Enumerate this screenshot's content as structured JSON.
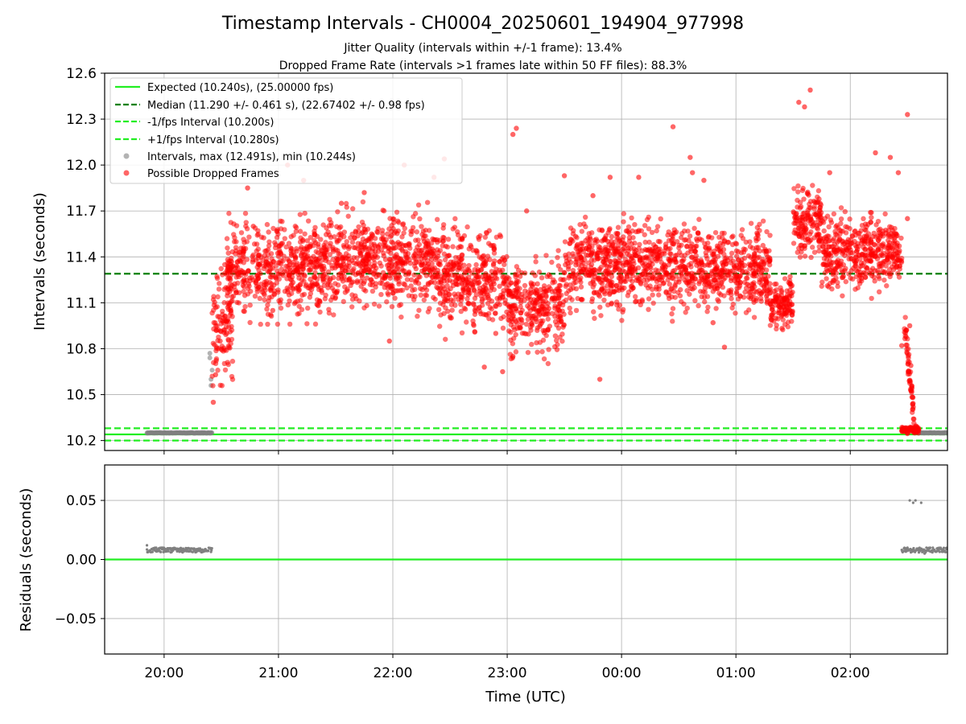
{
  "chart_data": {
    "type": "scatter",
    "title": "Timestamp Intervals - CH0004_20250601_194904_977998",
    "subtitle_lines": [
      "Jitter Quality (intervals within +/-1 frame): 13.4%",
      "Dropped Frame Rate (intervals >1 frames late within 50 FF files): 88.3%"
    ],
    "xlabel": "Time (UTC)",
    "x_tick_labels": [
      "20:00",
      "21:00",
      "22:00",
      "23:00",
      "00:00",
      "01:00",
      "02:00"
    ],
    "x_tick_hours": [
      20,
      21,
      22,
      23,
      24,
      25,
      26
    ],
    "xlim_hours": [
      19.48,
      26.85
    ],
    "grid": true,
    "top_panel": {
      "ylabel": "Intervals (seconds)",
      "ylim": [
        10.135,
        12.6
      ],
      "y_ticks": [
        10.2,
        10.5,
        10.8,
        11.1,
        11.4,
        11.7,
        12.0,
        12.3,
        12.6
      ],
      "y_tick_labels": [
        "10.2",
        "10.5",
        "10.8",
        "11.1",
        "11.4",
        "11.7",
        "12.0",
        "12.3",
        "12.6"
      ],
      "legend_position": "top-left",
      "lines": [
        {
          "label": "Expected (10.240s), (25.00000 fps)",
          "y": 10.24,
          "color": "#22ee22",
          "style": "solid"
        },
        {
          "label": "Median (11.290 +/- 0.461 s), (22.67402 +/- 0.98 fps)",
          "y": 11.29,
          "color": "#008000",
          "style": "dashed"
        },
        {
          "label": "-1/fps Interval (10.200s)",
          "y": 10.2,
          "color": "#22ee22",
          "style": "dashed"
        },
        {
          "label": "+1/fps Interval (10.280s)",
          "y": 10.28,
          "color": "#22ee22",
          "style": "dashed"
        }
      ],
      "series": [
        {
          "name": "Intervals, max (12.491s), min (10.244s)",
          "color": "#808080",
          "segments": [
            {
              "x_start": 19.85,
              "x_end": 20.42,
              "y": 10.25
            },
            {
              "x_start": 26.6,
              "x_end": 26.85,
              "y": 10.25
            }
          ],
          "points": [
            [
              20.4,
              10.77
            ],
            [
              20.41,
              10.6
            ],
            [
              20.41,
              10.56
            ],
            [
              20.42,
              10.66
            ],
            [
              20.4,
              10.74
            ]
          ]
        },
        {
          "name": "Possible Dropped Frames",
          "color": "#ff0000",
          "clusters": [
            {
              "x_start": 20.42,
              "x_end": 20.6,
              "y_min": 10.45,
              "y_max": 11.45
            },
            {
              "x_start": 20.55,
              "x_end": 21.5,
              "y_min": 10.9,
              "y_max": 11.75
            },
            {
              "x_start": 21.5,
              "x_end": 22.4,
              "y_min": 10.95,
              "y_max": 11.8
            },
            {
              "x_start": 22.4,
              "x_end": 23.0,
              "y_min": 10.8,
              "y_max": 11.7
            },
            {
              "x_start": 23.0,
              "x_end": 23.5,
              "y_min": 10.65,
              "y_max": 11.5
            },
            {
              "x_start": 23.5,
              "x_end": 24.7,
              "y_min": 10.95,
              "y_max": 11.75
            },
            {
              "x_start": 24.7,
              "x_end": 25.3,
              "y_min": 10.95,
              "y_max": 11.7
            },
            {
              "x_start": 25.3,
              "x_end": 25.5,
              "y_min": 10.85,
              "y_max": 11.35
            },
            {
              "x_start": 25.5,
              "x_end": 25.75,
              "y_min": 11.3,
              "y_max": 11.95
            },
            {
              "x_start": 25.75,
              "x_end": 26.45,
              "y_min": 11.1,
              "y_max": 11.75
            },
            {
              "x_start": 26.45,
              "x_end": 26.6,
              "y_min": 10.24,
              "y_max": 10.3
            }
          ],
          "outliers": [
            [
              20.43,
              10.45
            ],
            [
              20.45,
              10.63
            ],
            [
              20.49,
              10.85
            ],
            [
              20.52,
              10.97
            ],
            [
              20.73,
              11.85
            ],
            [
              20.78,
              11.6
            ],
            [
              20.95,
              11.05
            ],
            [
              21.08,
              12.0
            ],
            [
              21.22,
              11.9
            ],
            [
              21.55,
              11.75
            ],
            [
              21.75,
              11.82
            ],
            [
              21.97,
              10.85
            ],
            [
              22.1,
              12.0
            ],
            [
              22.28,
              11.2
            ],
            [
              22.36,
              11.92
            ],
            [
              22.45,
              12.04
            ],
            [
              22.8,
              10.68
            ],
            [
              22.9,
              10.9
            ],
            [
              23.05,
              12.2
            ],
            [
              23.08,
              12.24
            ],
            [
              23.05,
              10.75
            ],
            [
              22.96,
              10.65
            ],
            [
              23.17,
              11.7
            ],
            [
              23.5,
              11.93
            ],
            [
              23.75,
              11.8
            ],
            [
              23.81,
              10.6
            ],
            [
              23.9,
              11.92
            ],
            [
              24.15,
              11.92
            ],
            [
              24.45,
              12.25
            ],
            [
              24.6,
              12.05
            ],
            [
              24.62,
              11.95
            ],
            [
              24.72,
              11.9
            ],
            [
              24.8,
              10.97
            ],
            [
              24.9,
              10.81
            ],
            [
              25.35,
              11.0
            ],
            [
              25.55,
              12.41
            ],
            [
              25.6,
              12.38
            ],
            [
              25.65,
              12.49
            ],
            [
              25.67,
              11.6
            ],
            [
              25.82,
              11.95
            ],
            [
              26.05,
              11.4
            ],
            [
              26.22,
              12.08
            ],
            [
              26.35,
              12.05
            ],
            [
              26.42,
              11.95
            ],
            [
              26.45,
              10.82
            ],
            [
              26.5,
              12.33
            ],
            [
              26.52,
              10.95
            ],
            [
              26.5,
              11.65
            ],
            [
              26.53,
              10.69
            ]
          ]
        }
      ]
    },
    "bottom_panel": {
      "ylabel": "Residuals (seconds)",
      "ylim": [
        -0.08,
        0.08
      ],
      "y_ticks": [
        0.05,
        0.0,
        -0.05
      ],
      "y_tick_labels": [
        "0.05",
        "0.00",
        "−0.05"
      ],
      "zero_line_color": "#22ee22",
      "series": [
        {
          "name": "Residuals",
          "color": "#808080",
          "segments": [
            {
              "x_start": 19.85,
              "x_end": 20.42,
              "y": 0.008
            },
            {
              "x_start": 26.45,
              "x_end": 26.85,
              "y": 0.008
            }
          ],
          "points": [
            [
              19.85,
              0.012
            ],
            [
              26.48,
              0.009
            ],
            [
              26.5,
              0.01
            ],
            [
              26.52,
              0.05
            ],
            [
              26.55,
              0.048
            ],
            [
              26.57,
              0.05
            ],
            [
              26.62,
              0.048
            ],
            [
              26.6,
              0.006
            ],
            [
              26.65,
              0.005
            ]
          ]
        }
      ]
    }
  }
}
